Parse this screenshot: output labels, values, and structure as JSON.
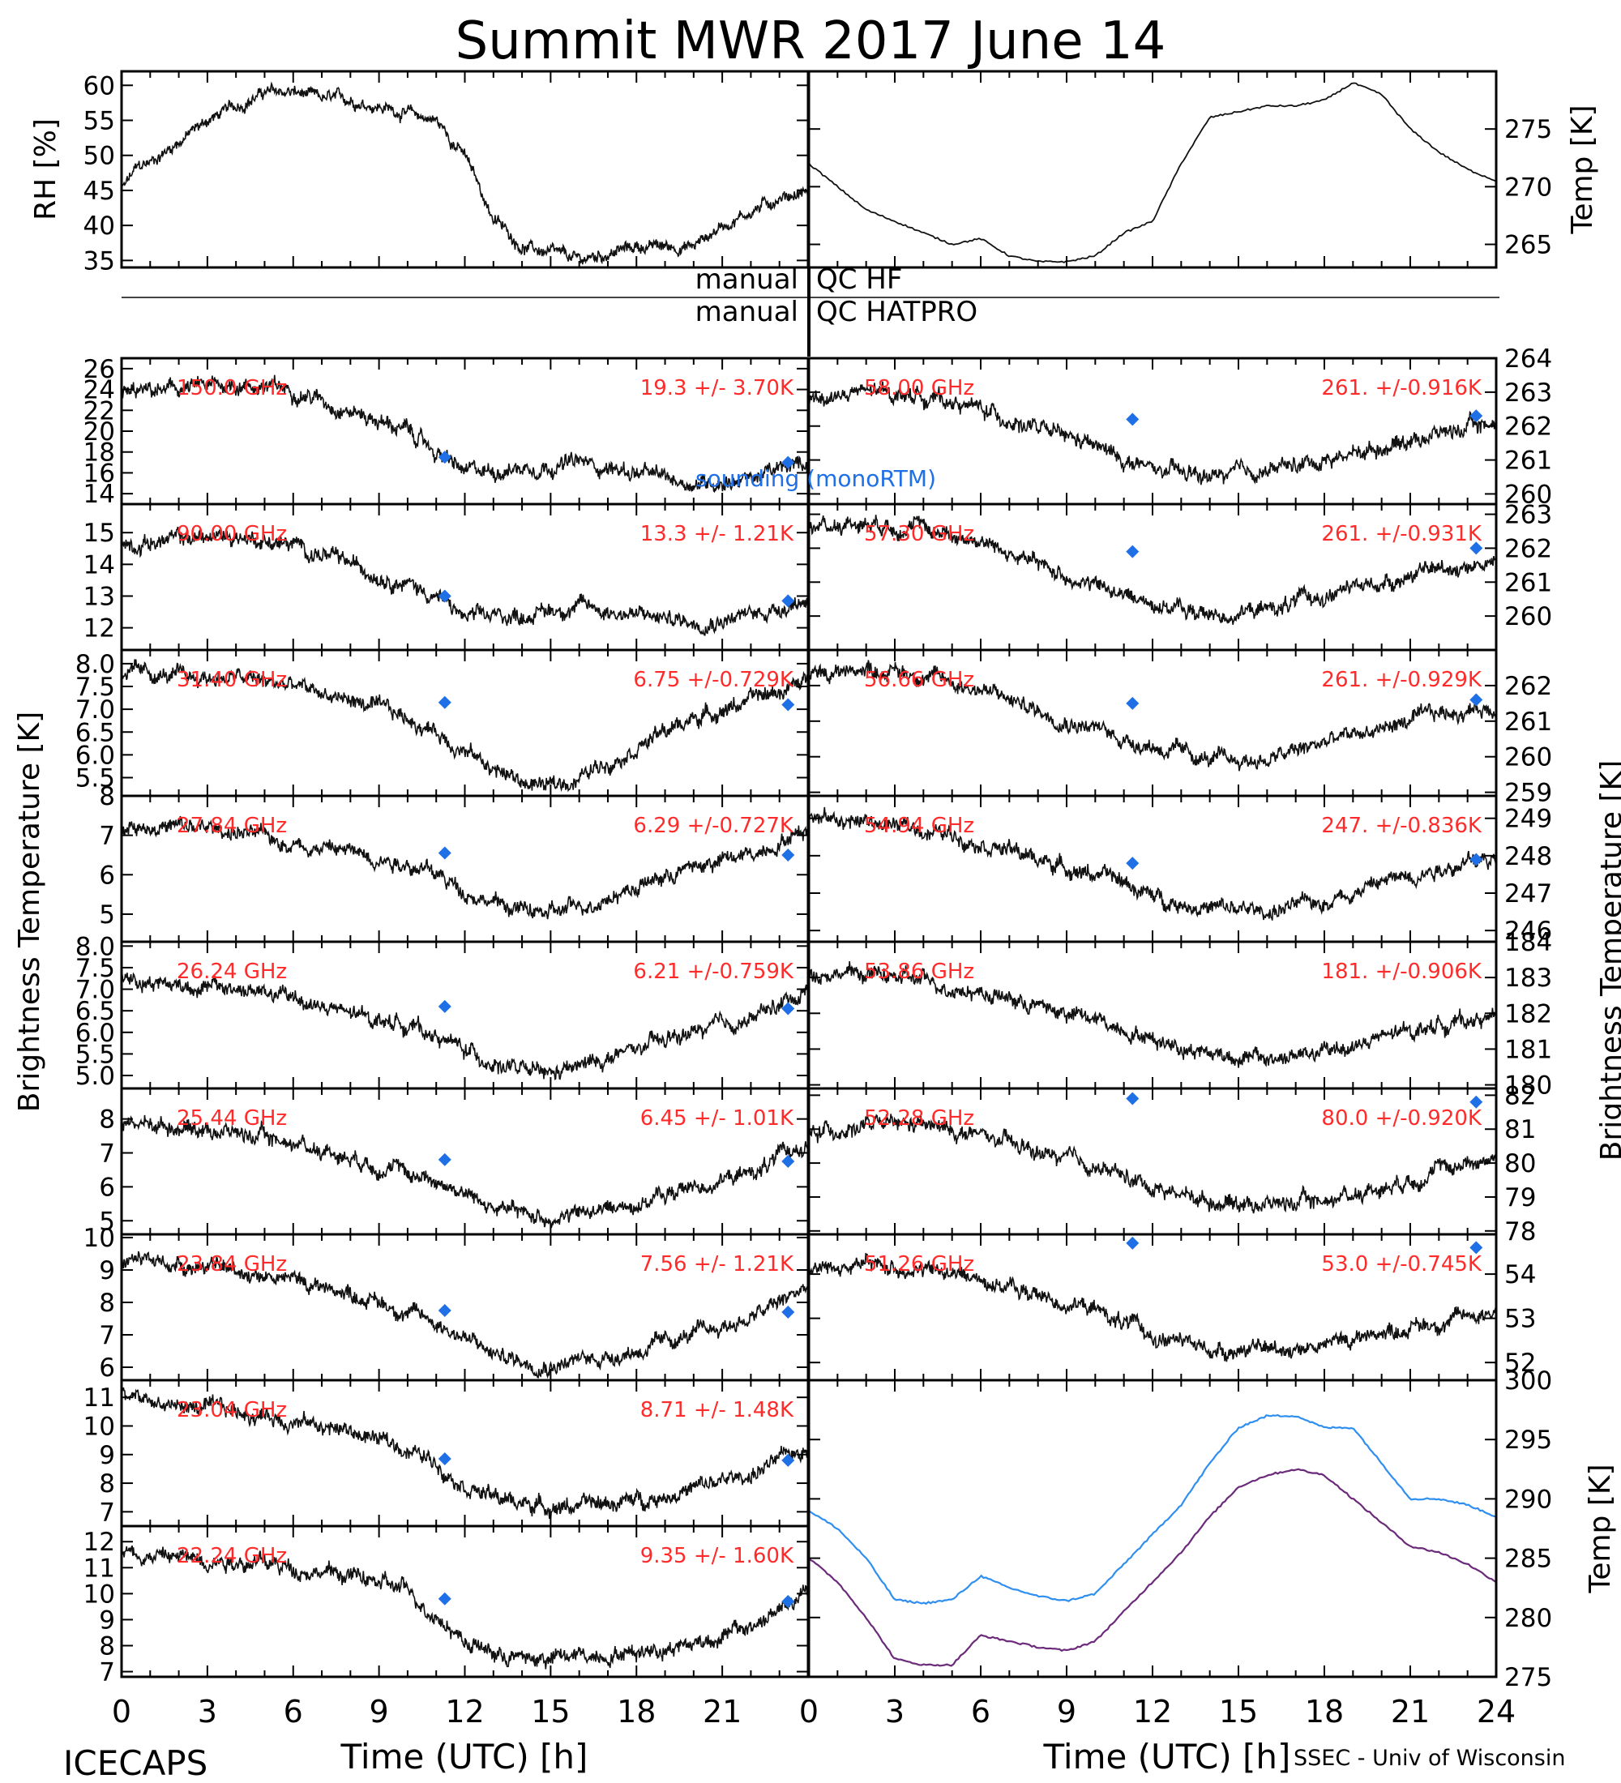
{
  "title": "Summit MWR 2017 June 14",
  "footer_left": "ICECAPS",
  "footer_right": "SSEC - Univ of Wisconsin",
  "colors": {
    "trace": "#111111",
    "label": "#ff2b2b",
    "sounding": "#1f6fe6",
    "bb_hatpro": "#2f8ff0",
    "bb_hf": "#6b2a7a"
  },
  "qc": {
    "label_manual": "manual",
    "hf": "QC HF",
    "hatpro": "QC HATPRO"
  },
  "sounding_label": "sounding (monoRTM)",
  "x_axis": {
    "label": "Time (UTC) [h]",
    "left_ticks": [
      "0",
      "3",
      "6",
      "9",
      "12",
      "15",
      "18",
      "21"
    ],
    "right_ticks": [
      "0",
      "3",
      "6",
      "9",
      "12",
      "15",
      "18",
      "21",
      "24"
    ]
  },
  "left_ylabel": "Brightness Temperature [K]",
  "right_ylabel": "Brightness Temperature [K]",
  "chart_data": [
    {
      "type": "scatter",
      "panel": "rh",
      "ylabel": "RH [%]",
      "ylim": [
        34,
        62
      ],
      "ticks": [
        "35",
        "40",
        "45",
        "50",
        "55",
        "60"
      ],
      "x": [
        0,
        0.5,
        1,
        2,
        3,
        4,
        5,
        6,
        7,
        8,
        9,
        10,
        11,
        12,
        13,
        14,
        15,
        16,
        17,
        18,
        19,
        20,
        21,
        22,
        23,
        24
      ],
      "y": [
        45,
        48,
        49,
        52,
        55,
        57,
        59,
        59,
        58,
        58,
        57,
        56,
        55,
        50,
        41,
        37,
        36,
        35,
        36,
        37,
        37,
        37,
        40,
        42,
        44,
        45
      ]
    },
    {
      "type": "line",
      "panel": "temp",
      "ylabel": "Temp [K]",
      "ylim": [
        263,
        280
      ],
      "ticks": [
        "265",
        "270",
        "275"
      ],
      "x": [
        0,
        1,
        2,
        3,
        4,
        5,
        6,
        7,
        8,
        9,
        10,
        11,
        12,
        13,
        14,
        15,
        16,
        17,
        18,
        19,
        20,
        21,
        22,
        23,
        24
      ],
      "y": [
        272,
        270,
        268,
        267,
        266,
        265,
        265.5,
        264,
        263.5,
        263.5,
        264,
        266,
        267,
        272,
        276,
        276.5,
        277,
        277,
        277.5,
        279,
        278,
        275,
        273,
        271.5,
        270.5
      ]
    },
    {
      "type": "scatter",
      "panel": "left-1",
      "freq": "150.0 GHz",
      "stats": "19.3 +/-  3.70K",
      "ylim": [
        13,
        27
      ],
      "ticks": [
        "14",
        "16",
        "18",
        "20",
        "22",
        "24",
        "26"
      ],
      "x": [
        0,
        2,
        4,
        6,
        8,
        10,
        11,
        12,
        14,
        16,
        18,
        20,
        22,
        24
      ],
      "y": [
        23.5,
        24,
        24.5,
        24,
        22,
        20,
        18,
        16,
        16.5,
        17,
        16,
        15,
        15.5,
        17
      ],
      "sounding": [
        [
          11.3,
          17.5
        ],
        [
          23.3,
          17.0
        ]
      ]
    },
    {
      "type": "scatter",
      "panel": "left-2",
      "freq": "90.00 GHz",
      "stats": "13.3 +/-  1.21K",
      "ylim": [
        11.3,
        15.9
      ],
      "ticks": [
        "12",
        "13",
        "14",
        "15"
      ],
      "x": [
        0,
        2,
        4,
        6,
        8,
        10,
        11,
        12,
        14,
        16,
        18,
        20,
        22,
        24
      ],
      "y": [
        14.6,
        14.8,
        14.9,
        14.6,
        14.0,
        13.4,
        13.0,
        12.3,
        12.4,
        12.7,
        12.4,
        12.2,
        12.4,
        12.9
      ],
      "sounding": [
        [
          11.3,
          13.0
        ],
        [
          23.3,
          12.85
        ]
      ]
    },
    {
      "type": "scatter",
      "panel": "left-3",
      "freq": "31.40 GHz",
      "stats": "6.75 +/-0.729K",
      "ylim": [
        5.1,
        8.3
      ],
      "ticks": [
        "5.5",
        "6.0",
        "6.5",
        "7.0",
        "7.5",
        "8.0"
      ],
      "x": [
        0,
        2,
        4,
        6,
        8,
        10,
        11,
        12,
        13,
        14,
        15,
        16,
        18,
        20,
        22,
        24
      ],
      "y": [
        7.8,
        7.7,
        7.7,
        7.5,
        7.2,
        6.8,
        6.5,
        6.1,
        5.7,
        5.4,
        5.3,
        5.5,
        6.2,
        6.8,
        7.2,
        7.6
      ],
      "sounding": [
        [
          11.3,
          7.15
        ],
        [
          23.3,
          7.1
        ]
      ]
    },
    {
      "type": "scatter",
      "panel": "left-4",
      "freq": "27.84 GHz",
      "stats": "6.29 +/-0.727K",
      "ylim": [
        4.3,
        8.0
      ],
      "ticks": [
        "5",
        "6",
        "7",
        "8"
      ],
      "x": [
        0,
        2,
        4,
        6,
        8,
        10,
        11,
        12,
        13,
        14,
        15,
        16,
        18,
        20,
        22,
        24
      ],
      "y": [
        7.3,
        7.2,
        7.1,
        6.8,
        6.6,
        6.3,
        6.0,
        5.6,
        5.3,
        5.1,
        5.0,
        5.2,
        5.7,
        6.2,
        6.5,
        7.2
      ],
      "sounding": [
        [
          11.3,
          6.55
        ],
        [
          23.3,
          6.5
        ]
      ]
    },
    {
      "type": "scatter",
      "panel": "left-5",
      "freq": "26.24 GHz",
      "stats": "6.21 +/-0.759K",
      "ylim": [
        4.7,
        8.1
      ],
      "ticks": [
        "5.0",
        "5.5",
        "6.0",
        "6.5",
        "7.0",
        "7.5",
        "8.0"
      ],
      "x": [
        0,
        2,
        4,
        6,
        8,
        10,
        11,
        12,
        13,
        14,
        15,
        16,
        18,
        20,
        22,
        24
      ],
      "y": [
        7.3,
        7.1,
        7.0,
        6.8,
        6.4,
        6.2,
        5.9,
        5.6,
        5.3,
        5.1,
        5.0,
        5.2,
        5.6,
        6.0,
        6.3,
        7.0
      ],
      "sounding": [
        [
          11.3,
          6.6
        ],
        [
          23.3,
          6.55
        ]
      ]
    },
    {
      "type": "scatter",
      "panel": "left-6",
      "freq": "25.44 GHz",
      "stats": "6.45 +/-  1.01K",
      "ylim": [
        4.6,
        8.9
      ],
      "ticks": [
        "5",
        "6",
        "7",
        "8"
      ],
      "x": [
        0,
        2,
        4,
        6,
        8,
        10,
        11,
        12,
        13,
        14,
        15,
        16,
        18,
        20,
        22,
        24
      ],
      "y": [
        7.9,
        7.8,
        7.6,
        7.3,
        6.9,
        6.4,
        6.2,
        5.8,
        5.4,
        5.2,
        5.1,
        5.2,
        5.5,
        6.0,
        6.4,
        7.3
      ],
      "sounding": [
        [
          11.3,
          6.8
        ],
        [
          23.3,
          6.75
        ]
      ]
    },
    {
      "type": "scatter",
      "panel": "left-7",
      "freq": "23.84 GHz",
      "stats": "7.56 +/-  1.21K",
      "ylim": [
        5.6,
        10.1
      ],
      "ticks": [
        "6",
        "7",
        "8",
        "9",
        "10"
      ],
      "x": [
        0,
        2,
        4,
        6,
        8,
        10,
        11,
        12,
        13,
        14,
        15,
        16,
        18,
        20,
        22,
        24
      ],
      "y": [
        9.3,
        9.2,
        9.0,
        8.7,
        8.3,
        7.7,
        7.4,
        6.9,
        6.4,
        6.2,
        6.1,
        6.2,
        6.5,
        7.0,
        7.5,
        8.5
      ],
      "sounding": [
        [
          11.3,
          7.75
        ],
        [
          23.3,
          7.7
        ]
      ]
    },
    {
      "type": "scatter",
      "panel": "left-8",
      "freq": "23.04 GHz",
      "stats": "8.71 +/-  1.48K",
      "ylim": [
        6.5,
        11.6
      ],
      "ticks": [
        "7",
        "8",
        "9",
        "10",
        "11"
      ],
      "x": [
        0,
        2,
        4,
        6,
        8,
        10,
        11,
        12,
        13,
        14,
        15,
        16,
        18,
        20,
        22,
        24
      ],
      "y": [
        11.0,
        10.7,
        10.5,
        10.2,
        9.8,
        9.2,
        8.7,
        8.0,
        7.5,
        7.3,
        7.2,
        7.2,
        7.4,
        7.8,
        8.3,
        9.3
      ],
      "sounding": [
        [
          11.3,
          8.85
        ],
        [
          23.3,
          8.8
        ]
      ]
    },
    {
      "type": "scatter",
      "panel": "left-9",
      "freq": "22.24 GHz",
      "stats": "9.35 +/-  1.60K",
      "ylim": [
        6.8,
        12.6
      ],
      "ticks": [
        "7",
        "8",
        "9",
        "10",
        "11",
        "12"
      ],
      "x": [
        0,
        2,
        4,
        6,
        8,
        10,
        11,
        12,
        13,
        14,
        15,
        16,
        18,
        20,
        22,
        24
      ],
      "y": [
        11.6,
        11.4,
        11.3,
        11.0,
        10.7,
        10.1,
        9.2,
        8.2,
        7.7,
        7.5,
        7.5,
        7.6,
        7.8,
        8.1,
        8.7,
        10.0
      ],
      "sounding": [
        [
          11.3,
          9.8
        ],
        [
          23.3,
          9.7
        ]
      ]
    },
    {
      "type": "scatter",
      "panel": "right-1",
      "freq": "58.00 GHz",
      "stats": "261. +/-0.916K",
      "ylim": [
        259.7,
        264.0
      ],
      "ticks": [
        "260",
        "261",
        "262",
        "263",
        "264"
      ],
      "x": [
        0,
        2,
        4,
        6,
        8,
        10,
        11,
        12,
        14,
        16,
        18,
        20,
        22,
        24
      ],
      "y": [
        262.8,
        263.0,
        262.9,
        262.5,
        261.9,
        261.4,
        261.0,
        260.7,
        260.5,
        260.7,
        261.0,
        261.4,
        261.8,
        262.1
      ],
      "sounding": [
        [
          11.3,
          262.2
        ],
        [
          23.3,
          262.3
        ]
      ]
    },
    {
      "type": "scatter",
      "panel": "right-2",
      "freq": "57.30 GHz",
      "stats": "261. +/-0.931K",
      "ylim": [
        259.0,
        263.3
      ],
      "ticks": [
        "260",
        "261",
        "262",
        "263"
      ],
      "x": [
        0,
        2,
        4,
        6,
        8,
        10,
        11,
        12,
        14,
        16,
        18,
        20,
        22,
        24
      ],
      "y": [
        262.6,
        262.8,
        262.6,
        262.2,
        261.5,
        260.9,
        260.6,
        260.4,
        260.0,
        260.2,
        260.6,
        261.0,
        261.4,
        261.6
      ],
      "sounding": [
        [
          11.3,
          261.9
        ],
        [
          23.3,
          262.0
        ]
      ]
    },
    {
      "type": "scatter",
      "panel": "right-3",
      "freq": "56.66 GHz",
      "stats": "261. +/-0.929K",
      "ylim": [
        258.9,
        263.0
      ],
      "ticks": [
        "259",
        "260",
        "261",
        "262"
      ],
      "x": [
        0,
        2,
        4,
        6,
        8,
        10,
        11,
        12,
        14,
        16,
        18,
        20,
        22,
        24
      ],
      "y": [
        262.3,
        262.5,
        262.3,
        261.9,
        261.3,
        260.8,
        260.5,
        260.3,
        259.9,
        259.9,
        260.4,
        260.8,
        261.2,
        261.4
      ],
      "sounding": [
        [
          11.3,
          261.5
        ],
        [
          23.3,
          261.6
        ]
      ]
    },
    {
      "type": "scatter",
      "panel": "right-4",
      "freq": "54.94 GHz",
      "stats": "247. +/-0.836K",
      "ylim": [
        245.7,
        249.6
      ],
      "ticks": [
        "246",
        "247",
        "248",
        "249"
      ],
      "x": [
        0,
        2,
        4,
        6,
        8,
        10,
        11,
        12,
        14,
        16,
        18,
        20,
        22,
        24
      ],
      "y": [
        249.0,
        248.9,
        248.7,
        248.4,
        247.9,
        247.5,
        247.3,
        246.9,
        246.6,
        246.5,
        246.8,
        247.3,
        247.7,
        247.9
      ],
      "sounding": [
        [
          11.3,
          247.8
        ],
        [
          23.3,
          247.9
        ]
      ]
    },
    {
      "type": "scatter",
      "panel": "right-5",
      "freq": "53.86 GHz",
      "stats": "181. +/-0.906K",
      "ylim": [
        179.9,
        184.0
      ],
      "ticks": [
        "180",
        "181",
        "182",
        "183",
        "184"
      ],
      "x": [
        0,
        2,
        4,
        6,
        8,
        10,
        11,
        12,
        14,
        16,
        18,
        20,
        22,
        24
      ],
      "y": [
        183.2,
        183.1,
        182.9,
        182.6,
        182.2,
        181.8,
        181.6,
        181.3,
        180.9,
        180.7,
        180.9,
        181.3,
        181.7,
        181.9
      ],
      "sounding": []
    },
    {
      "type": "scatter",
      "panel": "right-6",
      "freq": "52.28 GHz",
      "stats": "80.0 +/-0.920K",
      "ylim": [
        77.9,
        82.2
      ],
      "ticks": [
        "78",
        "79",
        "80",
        "81",
        "82"
      ],
      "x": [
        0,
        2,
        4,
        6,
        8,
        10,
        11,
        12,
        14,
        16,
        18,
        20,
        22,
        24
      ],
      "y": [
        80.9,
        81.1,
        81.1,
        80.8,
        80.3,
        79.9,
        79.6,
        79.3,
        78.9,
        78.8,
        78.9,
        79.3,
        79.8,
        80.2
      ],
      "sounding": [
        [
          11.3,
          81.9
        ],
        [
          23.3,
          81.8
        ]
      ]
    },
    {
      "type": "scatter",
      "panel": "right-7",
      "freq": "51.26 GHz",
      "stats": "53.0 +/-0.745K",
      "ylim": [
        51.6,
        54.9
      ],
      "ticks": [
        "52",
        "53",
        "54"
      ],
      "x": [
        0,
        2,
        4,
        6,
        8,
        10,
        11,
        12,
        14,
        16,
        18,
        20,
        22,
        24
      ],
      "y": [
        54.1,
        54.2,
        54.1,
        53.9,
        53.5,
        53.2,
        52.9,
        52.6,
        52.3,
        52.3,
        52.4,
        52.7,
        52.9,
        53.2
      ],
      "sounding": [
        [
          11.3,
          54.7
        ],
        [
          23.3,
          54.6
        ]
      ]
    },
    {
      "type": "line",
      "panel": "blackbody",
      "ylabel": "Temp [K]",
      "ylim": [
        275,
        300
      ],
      "ticks": [
        "275",
        "280",
        "285",
        "290",
        "295",
        "300"
      ],
      "series": [
        {
          "name": "Blackbody HATPRO",
          "x": [
            0,
            1,
            2,
            3,
            4,
            5,
            6,
            7,
            8,
            9,
            10,
            11,
            12,
            13,
            14,
            15,
            16,
            17,
            18,
            19,
            20,
            21,
            22,
            23,
            24
          ],
          "values": [
            289,
            287.5,
            285,
            281.5,
            281.2,
            281.5,
            283.5,
            282.5,
            281.8,
            281.4,
            282,
            284.5,
            287,
            289.5,
            293,
            296,
            297,
            297,
            296,
            296,
            293,
            290,
            290,
            289.5,
            288.5
          ]
        },
        {
          "name": "Blackbody HF",
          "x": [
            0,
            1,
            2,
            3,
            4,
            5,
            6,
            7,
            8,
            9,
            10,
            11,
            12,
            13,
            14,
            15,
            16,
            17,
            18,
            19,
            20,
            21,
            22,
            23,
            24
          ],
          "values": [
            285,
            283,
            280,
            276.5,
            276,
            276,
            278.5,
            278,
            277.5,
            277.2,
            278,
            280.5,
            283,
            285.5,
            288.5,
            291,
            292,
            292.5,
            292,
            290,
            288,
            286,
            285.5,
            284.5,
            283
          ]
        }
      ]
    }
  ]
}
